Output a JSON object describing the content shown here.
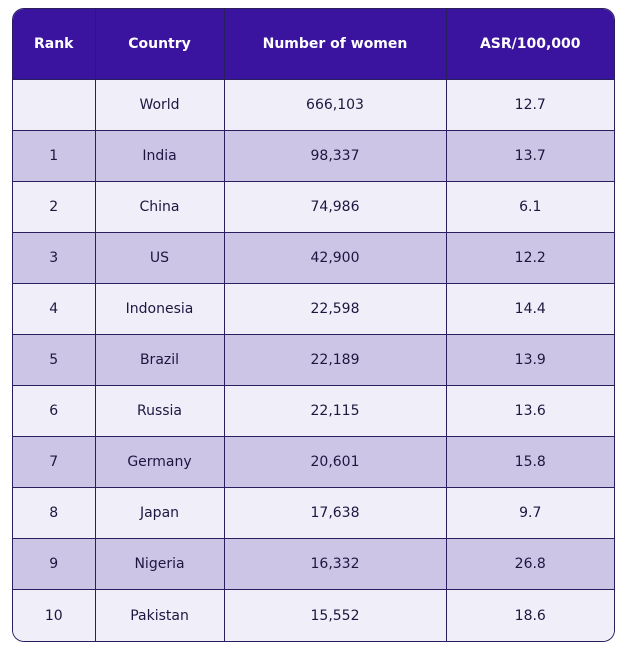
{
  "chart_data": {
    "type": "table",
    "columns": [
      "Rank",
      "Country",
      "Number of women",
      "ASR/100,000"
    ],
    "rows": [
      {
        "rank": "",
        "country": "World",
        "women": "666,103",
        "asr": "12.7"
      },
      {
        "rank": "1",
        "country": "India",
        "women": "98,337",
        "asr": "13.7"
      },
      {
        "rank": "2",
        "country": "China",
        "women": "74,986",
        "asr": "6.1"
      },
      {
        "rank": "3",
        "country": "US",
        "women": "42,900",
        "asr": "12.2"
      },
      {
        "rank": "4",
        "country": "Indonesia",
        "women": "22,598",
        "asr": "14.4"
      },
      {
        "rank": "5",
        "country": "Brazil",
        "women": "22,189",
        "asr": "13.9"
      },
      {
        "rank": "6",
        "country": "Russia",
        "women": "22,115",
        "asr": "13.6"
      },
      {
        "rank": "7",
        "country": "Germany",
        "women": "20,601",
        "asr": "15.8"
      },
      {
        "rank": "8",
        "country": "Japan",
        "women": "17,638",
        "asr": "9.7"
      },
      {
        "rank": "9",
        "country": "Nigeria",
        "women": "16,332",
        "asr": "26.8"
      },
      {
        "rank": "10",
        "country": "Pakistan",
        "women": "15,552",
        "asr": "18.6"
      }
    ]
  },
  "colors": {
    "header_bg": "#3a139e",
    "row_light": "#f0eef9",
    "row_dark": "#cdc5e6",
    "border": "#2a1f5e"
  }
}
